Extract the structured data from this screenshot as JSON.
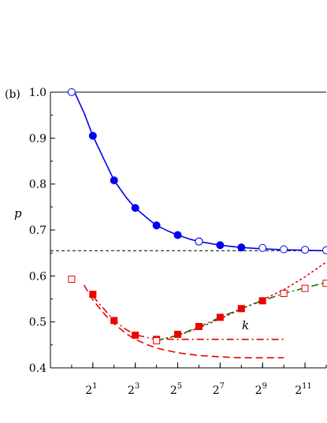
{
  "chart_data": {
    "type": "scatter",
    "panel_label": "(b)",
    "xlabel": "k",
    "ylabel": "p",
    "x_scale": "log2",
    "xlim": [
      0.5,
      4096
    ],
    "ylim": [
      0.4,
      1.0
    ],
    "x_ticks": [
      {
        "value": 2,
        "base": "2",
        "exp": "1"
      },
      {
        "value": 8,
        "base": "2",
        "exp": "3"
      },
      {
        "value": 32,
        "base": "2",
        "exp": "5"
      },
      {
        "value": 128,
        "base": "2",
        "exp": "7"
      },
      {
        "value": 512,
        "base": "2",
        "exp": "9"
      },
      {
        "value": 2048,
        "base": "2",
        "exp": "11"
      }
    ],
    "y_ticks": [
      "0.4",
      "0.5",
      "0.6",
      "0.7",
      "0.8",
      "0.9",
      "1.0"
    ],
    "grid": false,
    "reference_line": {
      "y": 0.655,
      "style": "dashed",
      "color": "#000000"
    },
    "series": [
      {
        "color": "#0000ee",
        "marker": "circle",
        "filled": true,
        "x": [
          2,
          4,
          8,
          16,
          32,
          64,
          128,
          256
        ],
        "y": [
          0.905,
          0.808,
          0.748,
          0.71,
          0.689,
          0.675,
          0.667,
          0.662
        ]
      },
      {
        "color": "#0000ee",
        "marker": "circle",
        "filled": false,
        "x": [
          1,
          64,
          512,
          1024,
          2048,
          4096
        ],
        "y": [
          1.0,
          0.675,
          0.661,
          0.658,
          0.657,
          0.656
        ]
      },
      {
        "color": "#0000ee",
        "line": "solid",
        "x": [
          1.1,
          1.5,
          2,
          3,
          4,
          6,
          8,
          12,
          16,
          24,
          32,
          48,
          64,
          128,
          256,
          512,
          1024,
          2048,
          4096
        ],
        "y": [
          1.0,
          0.955,
          0.905,
          0.848,
          0.808,
          0.77,
          0.748,
          0.725,
          0.71,
          0.697,
          0.689,
          0.68,
          0.675,
          0.667,
          0.662,
          0.659,
          0.657,
          0.656,
          0.655
        ]
      },
      {
        "color": "#ee0000",
        "marker": "square",
        "filled": true,
        "x": [
          2,
          4,
          8,
          16,
          32,
          64,
          128,
          256,
          512
        ],
        "y": [
          0.56,
          0.503,
          0.471,
          0.462,
          0.473,
          0.49,
          0.51,
          0.529,
          0.546
        ]
      },
      {
        "color": "#ee0000",
        "marker": "square",
        "filled": false,
        "x": [
          1,
          16,
          1024,
          2048,
          4096
        ],
        "y": [
          0.593,
          0.459,
          0.562,
          0.573,
          0.584
        ]
      },
      {
        "color": "#ee0000",
        "line": "dashed",
        "x": [
          1.5,
          2,
          3,
          4,
          6,
          8,
          12,
          16,
          32,
          64,
          128,
          256,
          512,
          1024
        ],
        "y": [
          0.58,
          0.548,
          0.515,
          0.496,
          0.474,
          0.462,
          0.45,
          0.443,
          0.433,
          0.427,
          0.424,
          0.422,
          0.422,
          0.422
        ]
      },
      {
        "color": "#ee0000",
        "line": "dashdot",
        "x": [
          2,
          3,
          4,
          6,
          8,
          12,
          16,
          32,
          64,
          128,
          256,
          512,
          1024
        ],
        "y": [
          0.556,
          0.525,
          0.503,
          0.483,
          0.472,
          0.466,
          0.463,
          0.462,
          0.462,
          0.462,
          0.462,
          0.462,
          0.462
        ]
      },
      {
        "color": "#ee0000",
        "line": "dotted",
        "x": [
          16,
          32,
          64,
          128,
          256,
          512,
          1024,
          2048,
          4096
        ],
        "y": [
          0.46,
          0.47,
          0.487,
          0.507,
          0.528,
          0.548,
          0.57,
          0.598,
          0.63
        ]
      },
      {
        "color": "#008000",
        "line": "dashdot",
        "x": [
          16,
          32,
          64,
          128,
          256,
          512,
          1024,
          2048,
          4096
        ],
        "y": [
          0.459,
          0.471,
          0.489,
          0.51,
          0.529,
          0.546,
          0.562,
          0.574,
          0.586
        ]
      }
    ]
  }
}
